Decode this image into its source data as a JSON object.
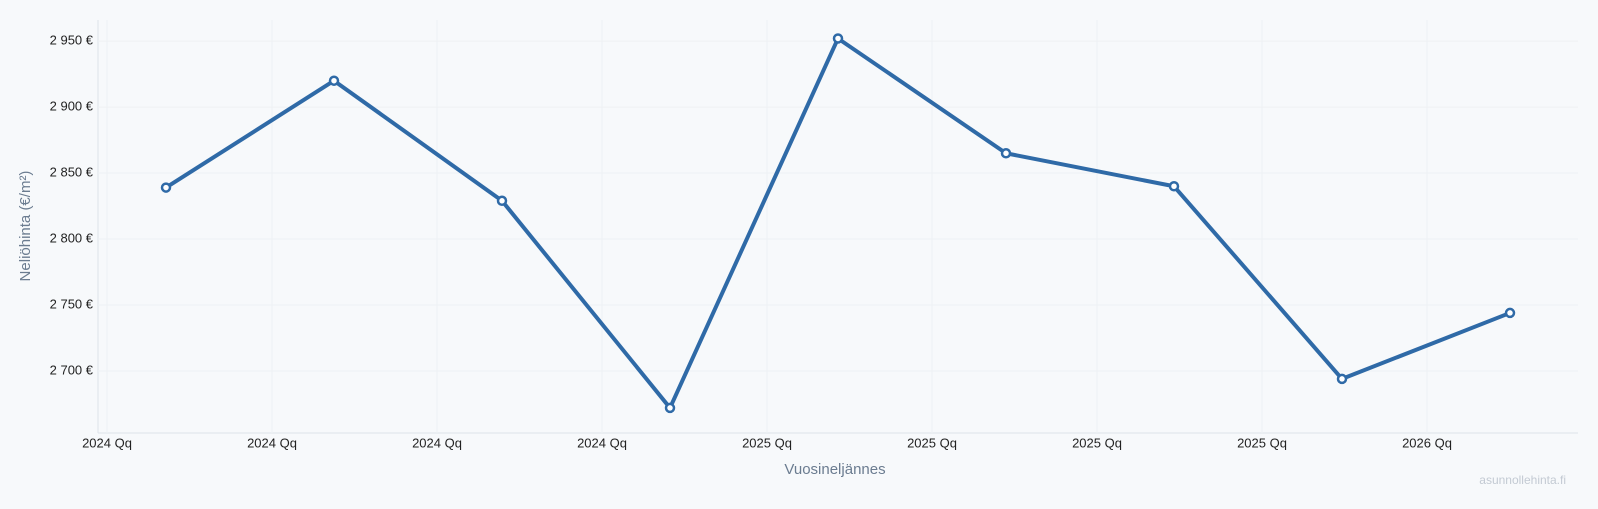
{
  "chart_data": {
    "type": "line",
    "x_label": "Vuosineljännes",
    "y_label": "Neliöhinta (€/m²)",
    "watermark": "asunnollehinta.fi",
    "categories": [
      "2024 Qq",
      "2024 Qq",
      "2024 Qq",
      "2024 Qq",
      "2025 Qq",
      "2025 Qq",
      "2025 Qq",
      "2025 Qq",
      "2026 Qq"
    ],
    "series": [
      {
        "color": "#2f6aa7",
        "values": [
          2839,
          2920,
          2829,
          2672,
          2952,
          2865,
          2840,
          2694,
          2744
        ]
      }
    ],
    "ylim": [
      2653,
      2966
    ],
    "yticks": [
      {
        "value": 2700,
        "label": "2 700 €"
      },
      {
        "value": 2750,
        "label": "2 750 €"
      },
      {
        "value": 2800,
        "label": "2 800 €"
      },
      {
        "value": 2850,
        "label": "2 850 €"
      },
      {
        "value": 2900,
        "label": "2 900 €"
      },
      {
        "value": 2950,
        "label": "2 950 €"
      }
    ],
    "grid": true
  }
}
